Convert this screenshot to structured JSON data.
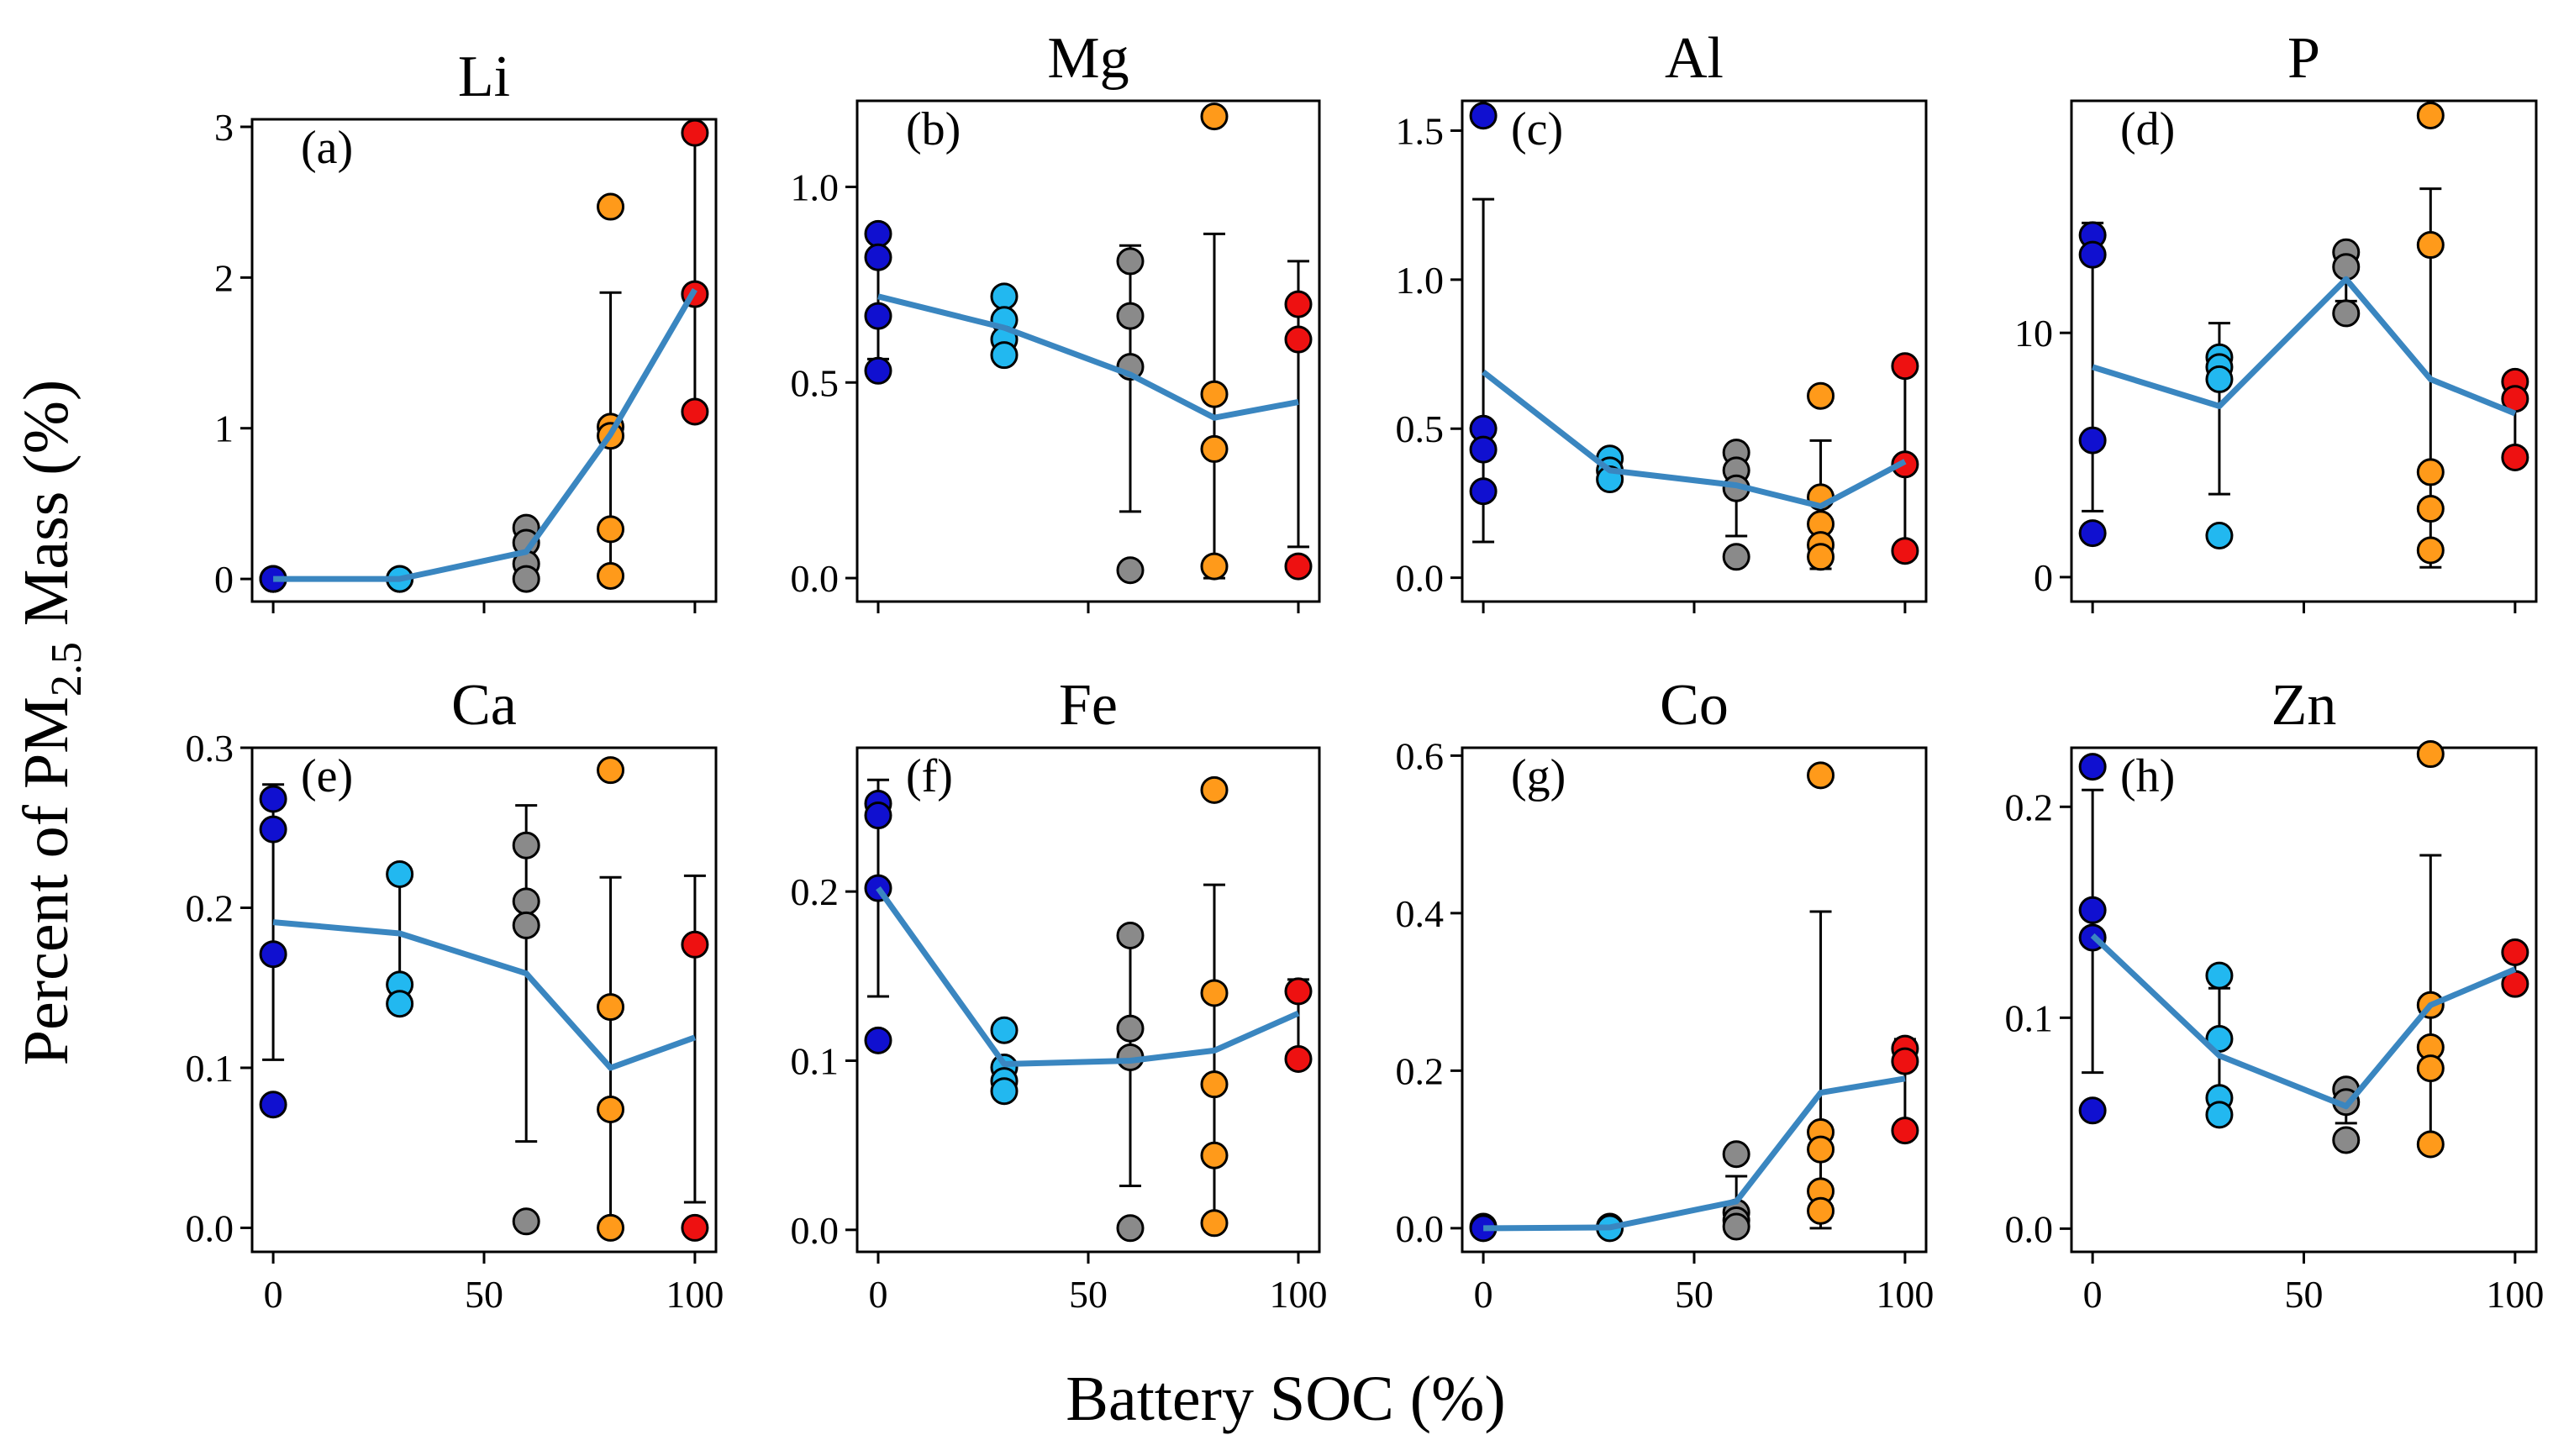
{
  "colors": {
    "soc0": "#1010d0",
    "soc30": "#22b8f0",
    "soc60": "#8a8a8a",
    "soc80": "#ff9a1a",
    "soc100": "#ee1111",
    "mean_line": "#3a86c0"
  },
  "chart_data": {
    "type": "scatter",
    "xlabel": "Battery SOC (%)",
    "ylabel_main": "Percent of PM",
    "ylabel_sub": "2.5",
    "ylabel_tail": " Mass (%)",
    "x_levels": [
      0,
      30,
      60,
      80,
      100
    ],
    "xlim": [
      -5,
      105
    ],
    "xticks": [
      0,
      50,
      100
    ],
    "panels": [
      {
        "title": "Li",
        "letter": "(a)",
        "ylim": [
          -0.15,
          3.05
        ],
        "yticks": [
          0,
          1,
          2,
          3
        ],
        "yticklabels": [
          "0",
          "1",
          "2",
          "3"
        ],
        "points": [
          [
            0,
            0.0
          ],
          [
            0,
            0.0
          ],
          [
            0,
            0.0
          ],
          [
            30,
            0.0
          ],
          [
            30,
            0.0
          ],
          [
            60,
            0.34
          ],
          [
            60,
            0.24
          ],
          [
            60,
            0.1
          ],
          [
            60,
            0.0
          ],
          [
            80,
            2.47
          ],
          [
            80,
            1.01
          ],
          [
            80,
            0.95
          ],
          [
            80,
            0.33
          ],
          [
            80,
            0.02
          ],
          [
            100,
            2.96
          ],
          [
            100,
            1.89
          ],
          [
            100,
            1.11
          ]
        ],
        "mean": [
          0.0,
          0.0,
          0.18,
          0.96,
          1.92
        ],
        "err": [
          null,
          null,
          null,
          [
            0.02,
            1.9
          ],
          [
            1.1,
            2.96
          ]
        ]
      },
      {
        "title": "Mg",
        "letter": "(b)",
        "ylim": [
          -0.06,
          1.22
        ],
        "yticks": [
          0,
          0.5,
          1.0
        ],
        "yticklabels": [
          "0.0",
          "0.5",
          "1.0"
        ],
        "points": [
          [
            0,
            0.88
          ],
          [
            0,
            0.82
          ],
          [
            0,
            0.67
          ],
          [
            0,
            0.53
          ],
          [
            30,
            0.72
          ],
          [
            30,
            0.66
          ],
          [
            30,
            0.61
          ],
          [
            30,
            0.57
          ],
          [
            60,
            0.81
          ],
          [
            60,
            0.67
          ],
          [
            60,
            0.54
          ],
          [
            60,
            0.02
          ],
          [
            80,
            1.18
          ],
          [
            80,
            0.47
          ],
          [
            80,
            0.33
          ],
          [
            80,
            0.03
          ],
          [
            100,
            0.7
          ],
          [
            100,
            0.61
          ],
          [
            100,
            0.03
          ]
        ],
        "mean": [
          0.72,
          0.64,
          0.52,
          0.41,
          0.45
        ],
        "err": [
          [
            0.56,
            0.88
          ],
          null,
          [
            0.17,
            0.85
          ],
          [
            0.0,
            0.88
          ],
          [
            0.08,
            0.81
          ]
        ]
      },
      {
        "title": "Al",
        "letter": "(c)",
        "ylim": [
          -0.08,
          1.6
        ],
        "yticks": [
          0,
          0.5,
          1.0,
          1.5
        ],
        "yticklabels": [
          "0.0",
          "0.5",
          "1.0",
          "1.5"
        ],
        "points": [
          [
            0,
            1.55
          ],
          [
            0,
            0.5
          ],
          [
            0,
            0.43
          ],
          [
            0,
            0.29
          ],
          [
            30,
            0.4
          ],
          [
            30,
            0.36
          ],
          [
            30,
            0.33
          ],
          [
            60,
            0.42
          ],
          [
            60,
            0.36
          ],
          [
            60,
            0.3
          ],
          [
            60,
            0.07
          ],
          [
            80,
            0.61
          ],
          [
            80,
            0.27
          ],
          [
            80,
            0.18
          ],
          [
            80,
            0.11
          ],
          [
            80,
            0.07
          ],
          [
            100,
            0.71
          ],
          [
            100,
            0.38
          ],
          [
            100,
            0.09
          ]
        ],
        "mean": [
          0.69,
          0.36,
          0.31,
          0.24,
          0.39
        ],
        "err": [
          [
            0.12,
            1.27
          ],
          null,
          [
            0.14,
            0.42
          ],
          [
            0.03,
            0.46
          ],
          [
            0.09,
            0.71
          ]
        ]
      },
      {
        "title": "P",
        "letter": "(d)",
        "ylim": [
          -1.0,
          19.5
        ],
        "yticks": [
          0,
          10
        ],
        "yticklabels": [
          "0",
          "10"
        ],
        "points": [
          [
            0,
            14.0
          ],
          [
            0,
            13.2
          ],
          [
            0,
            5.6
          ],
          [
            0,
            1.8
          ],
          [
            30,
            9.0
          ],
          [
            30,
            8.6
          ],
          [
            30,
            8.1
          ],
          [
            30,
            1.7
          ],
          [
            60,
            13.3
          ],
          [
            60,
            12.7
          ],
          [
            60,
            10.8
          ],
          [
            80,
            18.9
          ],
          [
            80,
            13.6
          ],
          [
            80,
            4.3
          ],
          [
            80,
            2.8
          ],
          [
            80,
            1.1
          ],
          [
            100,
            8.0
          ],
          [
            100,
            7.3
          ],
          [
            100,
            4.9
          ]
        ],
        "mean": [
          8.6,
          7.0,
          12.2,
          8.1,
          6.7
        ],
        "err": [
          [
            2.7,
            14.5
          ],
          [
            3.4,
            10.4
          ],
          [
            11.3,
            13.2
          ],
          [
            0.4,
            15.9
          ],
          [
            4.9,
            8.0
          ]
        ]
      },
      {
        "title": "Ca",
        "letter": "(e)",
        "ylim": [
          -0.015,
          0.3
        ],
        "yticks": [
          0,
          0.1,
          0.2,
          0.3
        ],
        "yticklabels": [
          "0.0",
          "0.1",
          "0.2",
          "0.3"
        ],
        "points": [
          [
            0,
            0.268
          ],
          [
            0,
            0.249
          ],
          [
            0,
            0.171
          ],
          [
            0,
            0.077
          ],
          [
            30,
            0.221
          ],
          [
            30,
            0.152
          ],
          [
            30,
            0.14
          ],
          [
            60,
            0.239
          ],
          [
            60,
            0.204
          ],
          [
            60,
            0.189
          ],
          [
            60,
            0.004
          ],
          [
            80,
            0.286
          ],
          [
            80,
            0.138
          ],
          [
            80,
            0.074
          ],
          [
            80,
            0.0
          ],
          [
            100,
            0.177
          ],
          [
            100,
            0.0
          ]
        ],
        "mean": [
          0.191,
          0.184,
          0.159,
          0.1,
          0.119
        ],
        "err": [
          [
            0.105,
            0.277
          ],
          [
            0.145,
            0.222
          ],
          [
            0.054,
            0.264
          ],
          [
            0.0,
            0.219
          ],
          [
            0.016,
            0.22
          ]
        ]
      },
      {
        "title": "Fe",
        "letter": "(f)",
        "ylim": [
          -0.013,
          0.285
        ],
        "yticks": [
          0,
          0.1,
          0.2
        ],
        "yticklabels": [
          "0.0",
          "0.1",
          "0.2"
        ],
        "points": [
          [
            0,
            0.252
          ],
          [
            0,
            0.245
          ],
          [
            0,
            0.202
          ],
          [
            0,
            0.112
          ],
          [
            30,
            0.118
          ],
          [
            30,
            0.096
          ],
          [
            30,
            0.088
          ],
          [
            30,
            0.082
          ],
          [
            60,
            0.174
          ],
          [
            60,
            0.119
          ],
          [
            60,
            0.102
          ],
          [
            60,
            0.001
          ],
          [
            80,
            0.26
          ],
          [
            80,
            0.14
          ],
          [
            80,
            0.086
          ],
          [
            80,
            0.044
          ],
          [
            80,
            0.004
          ],
          [
            100,
            0.141
          ],
          [
            100,
            0.101
          ]
        ],
        "mean": [
          0.202,
          0.098,
          0.1,
          0.106,
          0.128
        ],
        "err": [
          [
            0.138,
            0.266
          ],
          null,
          [
            0.026,
            0.174
          ],
          [
            0.0,
            0.204
          ],
          [
            0.101,
            0.148
          ]
        ]
      },
      {
        "title": "Co",
        "letter": "(g)",
        "ylim": [
          -0.03,
          0.61
        ],
        "yticks": [
          0,
          0.2,
          0.4,
          0.6
        ],
        "yticklabels": [
          "0.0",
          "0.2",
          "0.4",
          "0.6"
        ],
        "points": [
          [
            0,
            0.002
          ],
          [
            0,
            0.0
          ],
          [
            30,
            0.002
          ],
          [
            30,
            0.0
          ],
          [
            60,
            0.094
          ],
          [
            60,
            0.02
          ],
          [
            60,
            0.01
          ],
          [
            60,
            0.002
          ],
          [
            80,
            0.575
          ],
          [
            80,
            0.122
          ],
          [
            80,
            0.1
          ],
          [
            80,
            0.047
          ],
          [
            80,
            0.022
          ],
          [
            100,
            0.228
          ],
          [
            100,
            0.212
          ],
          [
            100,
            0.124
          ]
        ],
        "mean": [
          0.0,
          0.001,
          0.034,
          0.172,
          0.19
        ],
        "err": [
          null,
          null,
          [
            0.002,
            0.066
          ],
          [
            0.0,
            0.402
          ],
          [
            0.124,
            0.24
          ]
        ]
      },
      {
        "title": "Zn",
        "letter": "(h)",
        "ylim": [
          -0.011,
          0.228
        ],
        "yticks": [
          0,
          0.1,
          0.2
        ],
        "yticklabels": [
          "0.0",
          "0.1",
          "0.2"
        ],
        "points": [
          [
            0,
            0.219
          ],
          [
            0,
            0.151
          ],
          [
            0,
            0.138
          ],
          [
            0,
            0.056
          ],
          [
            30,
            0.12
          ],
          [
            30,
            0.09
          ],
          [
            30,
            0.062
          ],
          [
            30,
            0.054
          ],
          [
            60,
            0.066
          ],
          [
            60,
            0.06
          ],
          [
            60,
            0.042
          ],
          [
            80,
            0.225
          ],
          [
            80,
            0.106
          ],
          [
            80,
            0.086
          ],
          [
            80,
            0.076
          ],
          [
            80,
            0.04
          ],
          [
            100,
            0.131
          ],
          [
            100,
            0.116
          ]
        ],
        "mean": [
          0.139,
          0.082,
          0.058,
          0.106,
          0.123
        ],
        "err": [
          [
            0.074,
            0.208
          ],
          [
            0.052,
            0.114
          ],
          [
            0.05,
            0.067
          ],
          [
            0.04,
            0.177
          ],
          [
            0.116,
            0.131
          ]
        ]
      }
    ]
  }
}
